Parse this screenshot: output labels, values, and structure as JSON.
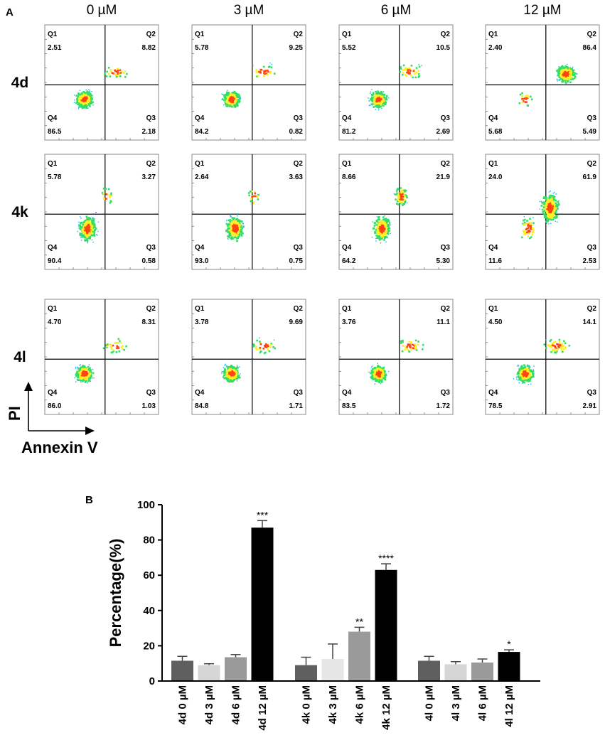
{
  "panel_a_label": "A",
  "panel_b_label": "B",
  "columns": [
    "0 µM",
    "3 µM",
    "6 µM",
    "12 µM"
  ],
  "rows": [
    "4d",
    "4k",
    "4l"
  ],
  "flow_axis_y": "PI",
  "flow_axis_x": "Annexin V",
  "quadrant_labels": [
    "Q1",
    "Q2",
    "Q3",
    "Q4"
  ],
  "flow_quadrants": [
    [
      [
        "2.51",
        "8.82",
        "2.18",
        "86.5"
      ],
      [
        "5.78",
        "9.25",
        "0.82",
        "84.2"
      ],
      [
        "5.52",
        "10.5",
        "2.69",
        "81.2"
      ],
      [
        "2.40",
        "86.4",
        "5.49",
        "5.68"
      ]
    ],
    [
      [
        "5.78",
        "3.27",
        "0.58",
        "90.4"
      ],
      [
        "2.64",
        "3.63",
        "0.75",
        "93.0"
      ],
      [
        "8.66",
        "21.9",
        "5.30",
        "64.2"
      ],
      [
        "24.0",
        "61.9",
        "2.53",
        "11.6"
      ]
    ],
    [
      [
        "4.70",
        "8.31",
        "1.03",
        "86.0"
      ],
      [
        "3.78",
        "9.69",
        "1.71",
        "84.8"
      ],
      [
        "3.76",
        "11.1",
        "1.72",
        "83.5"
      ],
      [
        "4.50",
        "14.1",
        "2.91",
        "78.5"
      ]
    ]
  ],
  "chart_data": {
    "type": "bar",
    "title": "",
    "xlabel": "",
    "ylabel": "Percentage(%)",
    "ylim": [
      0,
      100
    ],
    "yticks": [
      0,
      20,
      40,
      60,
      80,
      100
    ],
    "categories": [
      "4d 0 µM",
      "4d 3 µM",
      "4d 6 µM",
      "4d 12 µM",
      "4k 0 µM",
      "4k 3 µM",
      "4k 6 µM",
      "4k 12 µM",
      "4l 0 µM",
      "4l 3 µM",
      "4l 6 µM",
      "4l 12 µM"
    ],
    "values": [
      11.5,
      9.0,
      13.5,
      87.0,
      9.0,
      12.5,
      28.0,
      63.0,
      11.5,
      9.5,
      10.5,
      16.5
    ],
    "errors": [
      2.5,
      0.8,
      1.5,
      4.0,
      4.5,
      8.5,
      2.5,
      3.5,
      2.5,
      1.5,
      2.0,
      1.2
    ],
    "significance": [
      "",
      "",
      "",
      "***",
      "",
      "",
      "**",
      "****",
      "",
      "",
      "",
      "*"
    ],
    "colors": [
      "#5f5f5f",
      "#d6d6d6",
      "#9a9a9a",
      "#000000",
      "#5f5f5f",
      "#e6e6e6",
      "#9a9a9a",
      "#000000",
      "#5f5f5f",
      "#d6d6d6",
      "#9a9a9a",
      "#000000"
    ]
  }
}
